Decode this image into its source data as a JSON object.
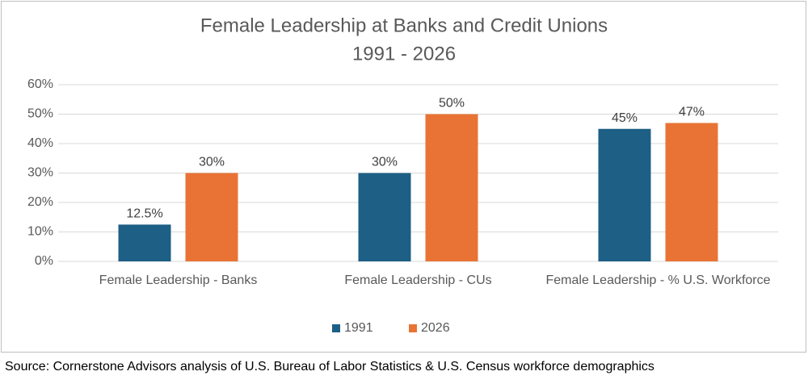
{
  "chart_data": {
    "type": "bar",
    "title": "Female Leadership at Banks and Credit Unions",
    "subtitle": "1991 - 2026",
    "categories": [
      "Female Leadership - Banks",
      "Female Leadership - CUs",
      "Female Leadership - % U.S. Workforce"
    ],
    "series": [
      {
        "name": "1991",
        "color": "#1d5f85",
        "values": [
          12.5,
          30,
          45
        ],
        "value_labels": [
          "12.5%",
          "30%",
          "45%"
        ]
      },
      {
        "name": "2026",
        "color": "#e97334",
        "values": [
          30,
          50,
          47
        ],
        "value_labels": [
          "30%",
          "50%",
          "47%"
        ]
      }
    ],
    "ylim": [
      0,
      60
    ],
    "yticks": [
      {
        "value": 0,
        "label": "0%"
      },
      {
        "value": 10,
        "label": "10%"
      },
      {
        "value": 20,
        "label": "20%"
      },
      {
        "value": 30,
        "label": "30%"
      },
      {
        "value": 40,
        "label": "40%"
      },
      {
        "value": 50,
        "label": "50%"
      },
      {
        "value": 60,
        "label": "60%"
      }
    ],
    "grid": true,
    "legend": "bottom",
    "source": "Source: Cornerstone Advisors analysis of U.S. Bureau of Labor Statistics & U.S. Census workforce demographics"
  }
}
